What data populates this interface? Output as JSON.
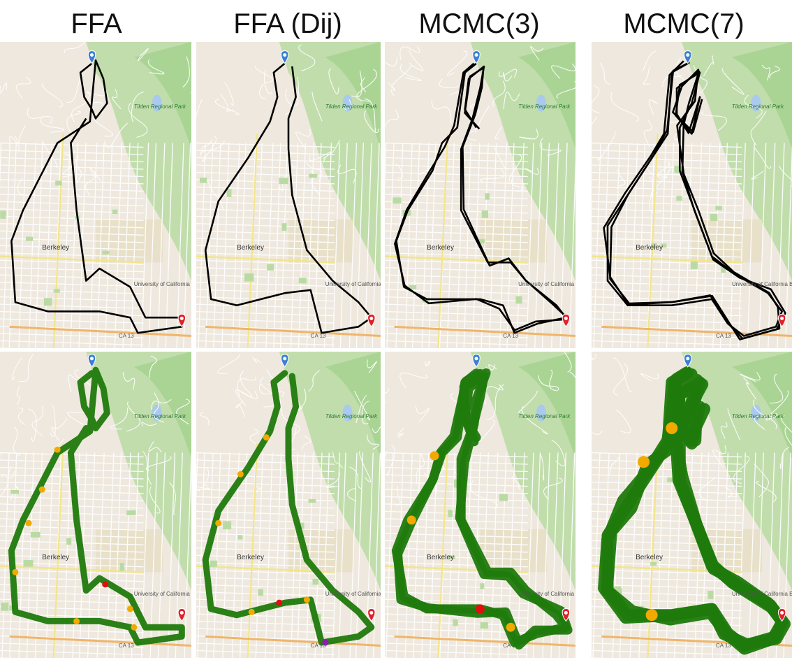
{
  "columns": [
    {
      "title": "FFA"
    },
    {
      "title": "FFA (Dij)"
    },
    {
      "title": "MCMC(3)"
    },
    {
      "title": "MCMC(7)"
    }
  ],
  "map_labels": {
    "park": "Tilden Regional Park",
    "city": "Berkeley",
    "university": "University of California Berkeley",
    "route": "CA 13"
  },
  "colors": {
    "route_black": "#000000",
    "speed_green": "#1f7a0c",
    "speed_orange": "#f2a900",
    "speed_red": "#e01010",
    "speed_purple": "#8e1cb0",
    "start_marker": "#3b7fd4",
    "end_marker": "#e0202a"
  },
  "markers": {
    "start": "start-pin",
    "end": "end-pin"
  }
}
